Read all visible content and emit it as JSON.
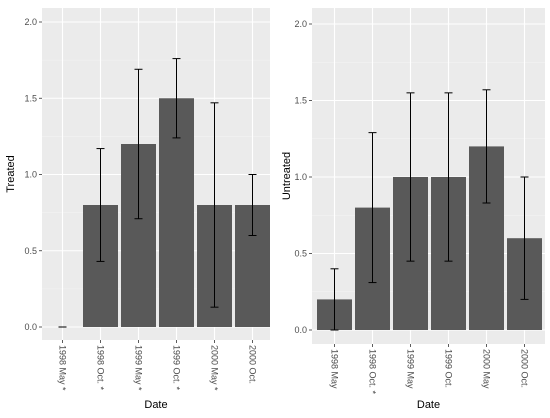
{
  "chart_data": [
    {
      "type": "bar",
      "categories": [
        "1998 May *",
        "1998 Oct. *",
        "1999 May *",
        "1999 Oct. *",
        "2000 May *",
        "2000 Oct."
      ],
      "values": [
        0.0,
        0.8,
        1.2,
        1.5,
        0.8,
        0.8
      ],
      "error_low": [
        0.0,
        0.43,
        0.71,
        1.24,
        0.13,
        0.6
      ],
      "error_high": [
        0.0,
        1.17,
        1.69,
        1.76,
        1.47,
        1.0
      ],
      "xlabel": "Date",
      "ylabel": "Treated",
      "ylim": [
        0,
        2.0
      ],
      "yticks": [
        "0.0",
        "0.5",
        "1.0",
        "1.5",
        "2.0"
      ],
      "grid": true,
      "bar_color": "#595959",
      "panel_bg": "#ebebeb"
    },
    {
      "type": "bar",
      "categories": [
        "1998 May",
        "1998 Oct. *",
        "1999 May",
        "1999 Oct.",
        "2000 May",
        "2000 Oct."
      ],
      "values": [
        0.2,
        0.8,
        1.0,
        1.0,
        1.2,
        0.6
      ],
      "error_low": [
        0.0,
        0.31,
        0.45,
        0.45,
        0.83,
        0.2
      ],
      "error_high": [
        0.4,
        1.29,
        1.55,
        1.55,
        1.57,
        1.0
      ],
      "xlabel": "Date",
      "ylabel": "Untreated",
      "ylim": [
        0,
        2.0
      ],
      "yticks": [
        "0.0",
        "0.5",
        "1.0",
        "1.5",
        "2.0"
      ],
      "grid": true,
      "bar_color": "#595959",
      "panel_bg": "#ebebeb"
    }
  ]
}
